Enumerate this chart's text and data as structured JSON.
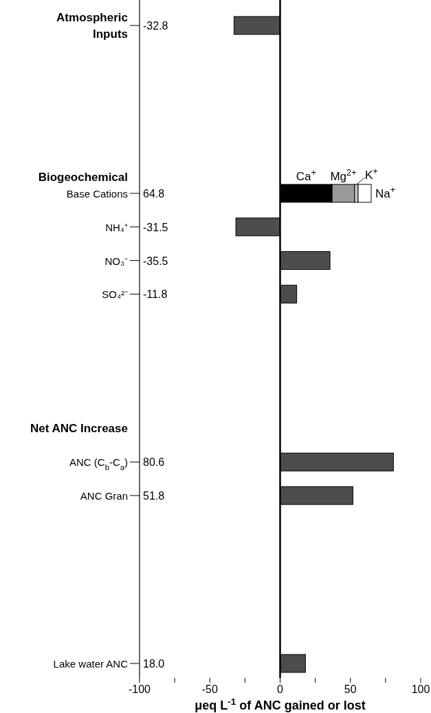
{
  "chart_data": {
    "type": "bar",
    "orientation": "horizontal",
    "stacked": true,
    "categories": [
      "Atmospheric Inputs",
      null,
      null,
      null,
      null,
      null,
      null,
      null,
      null,
      "Biogeochemical",
      "Base Cations",
      null,
      "NH₄⁺",
      null,
      "NO₃⁻",
      null,
      "SO₄²⁻",
      null,
      null,
      null,
      null,
      null,
      null,
      null,
      "Net ANC Increase",
      null,
      "ANC (C$_{b}$-C$_{a}$)",
      null,
      "ANC Gran",
      null,
      null,
      null,
      null,
      null,
      null,
      null,
      null,
      null,
      "Lake water ANC"
    ],
    "series": [
      {
        "color": "#4d4d4d",
        "values": [
          -32.8,
          null,
          null,
          null,
          null,
          null,
          null,
          null,
          null,
          null,
          null,
          null,
          -31.5,
          null,
          35.5,
          null,
          11.8,
          null,
          null,
          null,
          null,
          null,
          null,
          null,
          null,
          null,
          80.6,
          null,
          51.8,
          null,
          null,
          null,
          null,
          null,
          null,
          null,
          null,
          null,
          18.0
        ]
      },
      {
        "name": "Ca$^{+}$",
        "color": "#000000",
        "values": [
          null,
          null,
          null,
          null,
          null,
          null,
          null,
          null,
          null,
          null,
          37,
          null,
          null,
          null,
          null,
          null,
          null,
          null,
          null,
          null,
          null,
          null,
          null,
          null,
          null,
          null,
          null,
          null,
          null,
          null,
          null,
          null,
          null,
          null,
          null,
          null,
          null,
          null,
          null
        ]
      },
      {
        "name": "Mg$^{2+}$",
        "color": "#9a9a9a",
        "values": [
          null,
          null,
          null,
          null,
          null,
          null,
          null,
          null,
          null,
          null,
          16,
          null,
          null,
          null,
          null,
          null,
          null,
          null,
          null,
          null,
          null,
          null,
          null,
          null,
          null,
          null,
          null,
          null,
          null,
          null,
          null,
          null,
          null,
          null,
          null,
          null,
          null,
          null,
          null
        ]
      },
      {
        "name": "K$^{+}$",
        "color": "#c8c8c8",
        "values": [
          null,
          null,
          null,
          null,
          null,
          null,
          null,
          null,
          null,
          null,
          2.5,
          null,
          null,
          null,
          null,
          null,
          null,
          null,
          null,
          null,
          null,
          null,
          null,
          null,
          null,
          null,
          null,
          null,
          null,
          null,
          null,
          null,
          null,
          null,
          null,
          null,
          null,
          null,
          null
        ]
      },
      {
        "name": "Na$^{+}$",
        "color": "#ffffff",
        "values": [
          null,
          null,
          null,
          null,
          null,
          null,
          null,
          null,
          null,
          null,
          9.3,
          null,
          null,
          null,
          null,
          null,
          null,
          null,
          null,
          null,
          null,
          null,
          null,
          null,
          null,
          null,
          null,
          null,
          null,
          null,
          null,
          null,
          null,
          null,
          null,
          null,
          null,
          null,
          null
        ]
      }
    ],
    "annotations": [
      "-32.8",
      "64.8",
      "-31.5",
      "-35.5",
      "-11.8",
      "80.6",
      "51.8",
      "18.0"
    ],
    "xlim": [
      -100,
      100
    ],
    "xticks": [
      -100,
      {
        "value": -75,
        "label": null
      },
      -50,
      {
        "value": -25,
        "label": null
      },
      0,
      {
        "value": 25,
        "label": null
      },
      50,
      {
        "value": 75,
        "label": null
      },
      100
    ],
    "xlabel": "μeq L$^{-1}$ of ANC gained or lost"
  }
}
